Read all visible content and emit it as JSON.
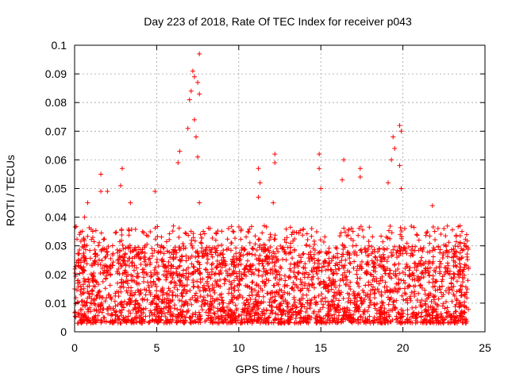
{
  "chart_data": {
    "type": "scatter",
    "title": "Day 223 of 2018, Rate Of TEC Index for receiver p043",
    "xlabel": "GPS time / hours",
    "ylabel": "ROTI / TECUs",
    "xlim": [
      0,
      24
    ],
    "ylim": [
      0,
      0.1
    ],
    "x_ticks": [
      0,
      5,
      10,
      15,
      20,
      25
    ],
    "x_tick_labels": [
      "0",
      "5",
      "10",
      "15",
      "20",
      "25"
    ],
    "y_ticks": [
      0,
      0.01,
      0.02,
      0.03,
      0.04,
      0.05,
      0.06,
      0.07,
      0.08,
      0.09,
      0.1
    ],
    "y_tick_labels": [
      "0",
      "0.01",
      "0.02",
      "0.03",
      "0.04",
      "0.05",
      "0.06",
      "0.07",
      "0.08",
      "0.09",
      "0.1"
    ],
    "grid": true,
    "marker": "+",
    "marker_color": "#ff0000",
    "series": [
      {
        "name": "ROTI",
        "description_note": "dense scatter; representative baseline drawn procedurally plus the notable peaks below",
        "baseline_range": [
          0.003,
          0.03
        ],
        "peaks": [
          {
            "x": 0.3,
            "y": 0.034
          },
          {
            "x": 0.6,
            "y": 0.04
          },
          {
            "x": 0.8,
            "y": 0.045
          },
          {
            "x": 1.6,
            "y": 0.055
          },
          {
            "x": 1.6,
            "y": 0.049
          },
          {
            "x": 2.0,
            "y": 0.049
          },
          {
            "x": 2.9,
            "y": 0.057
          },
          {
            "x": 2.8,
            "y": 0.051
          },
          {
            "x": 3.4,
            "y": 0.045
          },
          {
            "x": 4.9,
            "y": 0.049
          },
          {
            "x": 6.3,
            "y": 0.059
          },
          {
            "x": 6.4,
            "y": 0.063
          },
          {
            "x": 6.9,
            "y": 0.071
          },
          {
            "x": 7.0,
            "y": 0.081
          },
          {
            "x": 7.1,
            "y": 0.084
          },
          {
            "x": 7.2,
            "y": 0.091
          },
          {
            "x": 7.3,
            "y": 0.089
          },
          {
            "x": 7.3,
            "y": 0.074
          },
          {
            "x": 7.4,
            "y": 0.068
          },
          {
            "x": 7.5,
            "y": 0.087
          },
          {
            "x": 7.6,
            "y": 0.097
          },
          {
            "x": 7.6,
            "y": 0.083
          },
          {
            "x": 7.5,
            "y": 0.061
          },
          {
            "x": 7.6,
            "y": 0.045
          },
          {
            "x": 11.2,
            "y": 0.057
          },
          {
            "x": 11.3,
            "y": 0.052
          },
          {
            "x": 11.2,
            "y": 0.047
          },
          {
            "x": 12.2,
            "y": 0.062
          },
          {
            "x": 12.2,
            "y": 0.059
          },
          {
            "x": 12.1,
            "y": 0.045
          },
          {
            "x": 14.9,
            "y": 0.062
          },
          {
            "x": 14.9,
            "y": 0.057
          },
          {
            "x": 15.0,
            "y": 0.05
          },
          {
            "x": 16.4,
            "y": 0.06
          },
          {
            "x": 16.3,
            "y": 0.053
          },
          {
            "x": 17.4,
            "y": 0.057
          },
          {
            "x": 17.4,
            "y": 0.054
          },
          {
            "x": 19.1,
            "y": 0.052
          },
          {
            "x": 19.3,
            "y": 0.06
          },
          {
            "x": 19.4,
            "y": 0.068
          },
          {
            "x": 19.5,
            "y": 0.064
          },
          {
            "x": 19.8,
            "y": 0.072
          },
          {
            "x": 19.9,
            "y": 0.07
          },
          {
            "x": 19.8,
            "y": 0.058
          },
          {
            "x": 19.9,
            "y": 0.05
          },
          {
            "x": 21.8,
            "y": 0.044
          },
          {
            "x": 22.5,
            "y": 0.036
          },
          {
            "x": 23.6,
            "y": 0.035
          }
        ]
      }
    ]
  }
}
